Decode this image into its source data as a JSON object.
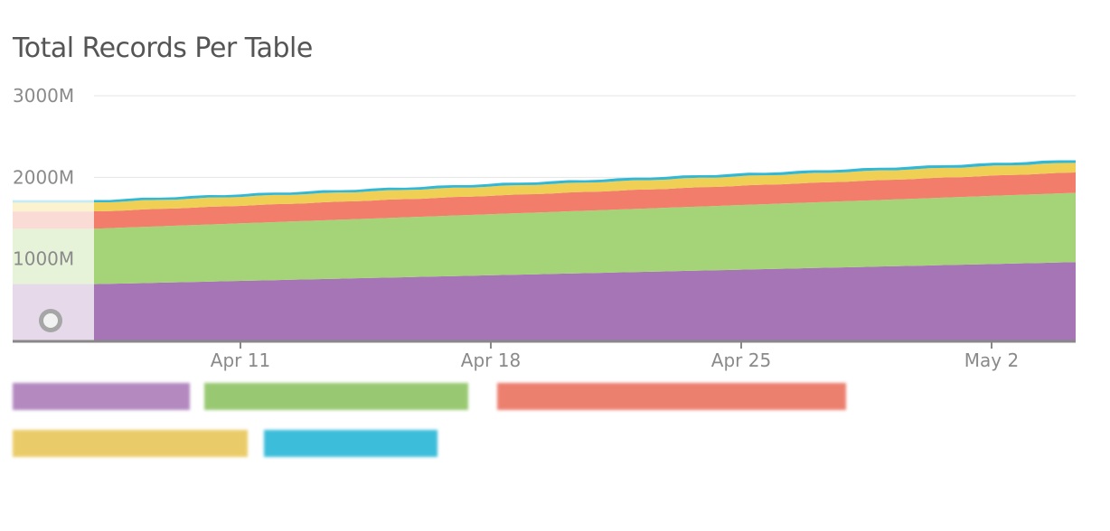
{
  "chart_data": {
    "type": "area",
    "stacked": true,
    "title": "Total Records Per Table",
    "y_ticks": [
      "3000M",
      "2000M",
      "1000M"
    ],
    "x_ticks": [
      "Apr 11",
      "Apr 18",
      "Apr 25",
      "May 2"
    ],
    "ylim": [
      0,
      3000
    ],
    "grid": true,
    "legend_position": "bottom",
    "x": [
      "Apr 7",
      "May 5"
    ],
    "series": [
      {
        "color": "#a675b5",
        "values": [
          690,
          960
        ]
      },
      {
        "color": "#a5d478",
        "values": [
          680,
          850
        ]
      },
      {
        "color": "#f27d6b",
        "values": [
          210,
          250
        ]
      },
      {
        "color": "#f0cf55",
        "values": [
          110,
          120
        ]
      },
      {
        "color": "#31b8d6",
        "values": [
          30,
          35
        ]
      }
    ],
    "legend_colors": [
      "#a675b5",
      "#87c05a",
      "#e96a57",
      "#e6c350",
      "#1bb3d4"
    ]
  }
}
